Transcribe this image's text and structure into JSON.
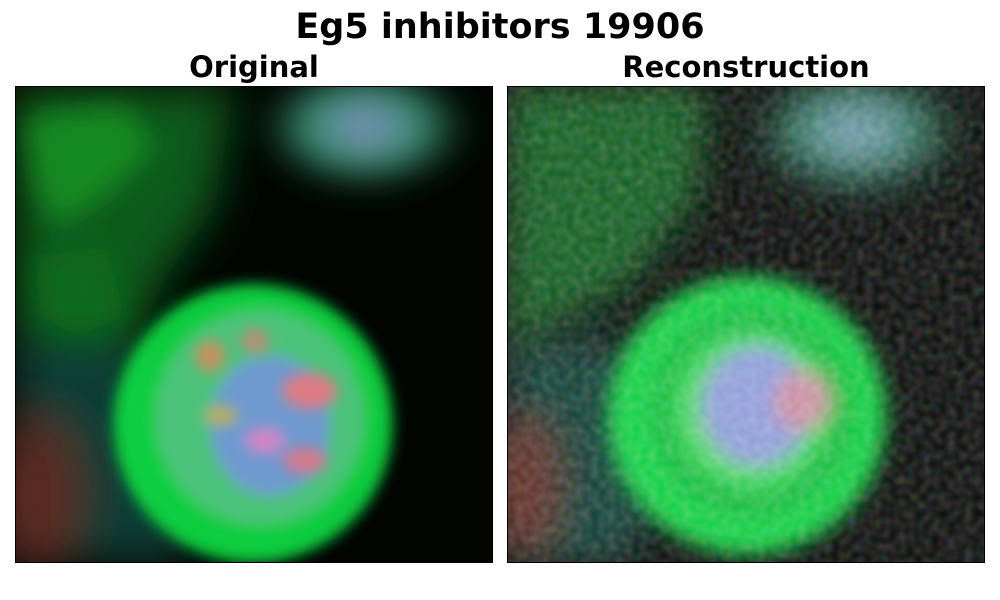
{
  "figure": {
    "title": "Eg5 inhibitors 19906"
  },
  "panels": [
    {
      "title": "Original"
    },
    {
      "title": "Reconstruction"
    }
  ]
}
